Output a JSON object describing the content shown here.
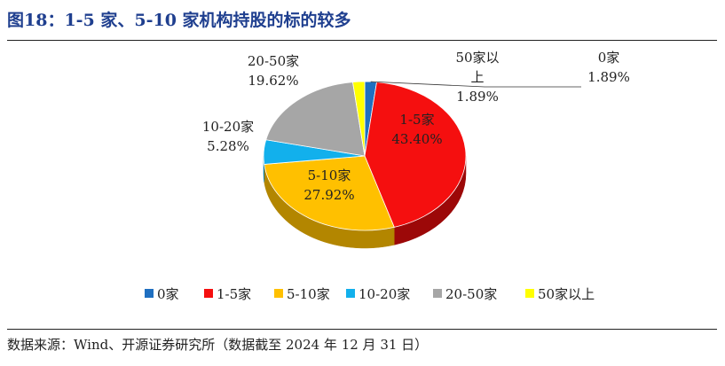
{
  "title": "图18：1-5 家、5-10 家机构持股的标的较多",
  "source": "数据来源：Wind、开源证券研究所（数据截至 2024 年 12 月 31 日）",
  "chart_data": {
    "type": "pie",
    "title": "图18：1-5 家、5-10 家机构持股的标的较多",
    "legend_position": "bottom",
    "slices": [
      {
        "label": "0家",
        "value": 1.89,
        "value_label": "1.89%",
        "color": "#1f6fc0",
        "side_color": "#13457a"
      },
      {
        "label": "1-5家",
        "value": 43.4,
        "value_label": "43.40%",
        "color": "#f50f0f",
        "side_color": "#9c0808"
      },
      {
        "label": "5-10家",
        "value": 27.92,
        "value_label": "27.92%",
        "color": "#ffc000",
        "side_color": "#b38600"
      },
      {
        "label": "10-20家",
        "value": 5.28,
        "value_label": "5.28%",
        "color": "#12b0ec",
        "side_color": "#0a7aa4"
      },
      {
        "label": "20-50家",
        "value": 19.62,
        "value_label": "19.62%",
        "color": "#a6a6a6",
        "side_color": "#707070"
      },
      {
        "label": "50家以上",
        "value": 1.89,
        "value_label": "1.89%",
        "color": "#ffff00",
        "side_color": "#b3b300"
      }
    ]
  }
}
